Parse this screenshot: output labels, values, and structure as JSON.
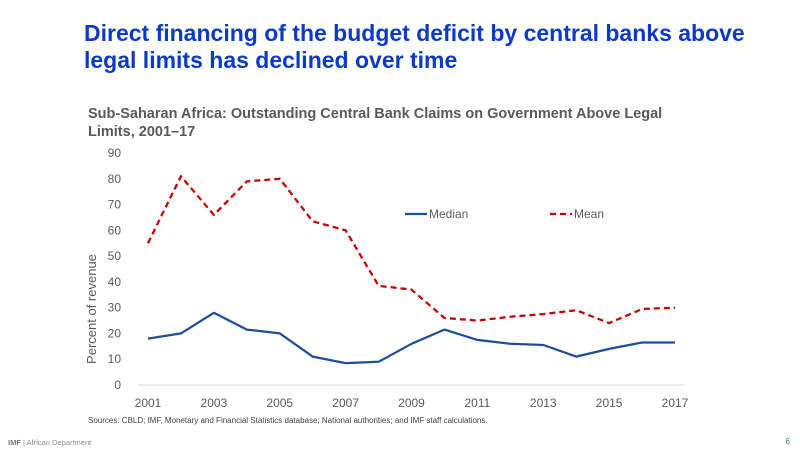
{
  "slide": {
    "title": "Direct financing of the budget deficit by central banks above legal limits has declined over time",
    "source": "Sources: CBLD; IMF, Monetary and Financial Statistics database; National authorities; and IMF staff calculations.",
    "footer_org": "IMF",
    "footer_dept": " | African Department",
    "page_number": "6"
  },
  "colors": {
    "median": "#1f4e96",
    "mean": "#c00000",
    "title": "#0b3bc4"
  },
  "chart_data": {
    "type": "line",
    "title": "Sub-Saharan Africa: Outstanding Central Bank Claims on Government Above Legal Limits, 2001–17",
    "xlabel": "",
    "ylabel": "Percent of revenue",
    "x": [
      2001,
      2002,
      2003,
      2004,
      2005,
      2006,
      2007,
      2008,
      2009,
      2010,
      2011,
      2012,
      2013,
      2014,
      2015,
      2016,
      2017
    ],
    "xticks": [
      "2001",
      "2003",
      "2005",
      "2007",
      "2009",
      "2011",
      "2013",
      "2015",
      "2017"
    ],
    "yticks": [
      "0",
      "10",
      "20",
      "30",
      "40",
      "50",
      "60",
      "70",
      "80",
      "90"
    ],
    "ylim": [
      0,
      90
    ],
    "grid": false,
    "legend_position": "top-right",
    "series": [
      {
        "name": "Median",
        "style": "solid",
        "values": [
          18,
          20,
          28,
          21.5,
          20,
          11,
          8.5,
          9,
          16,
          21.5,
          17.5,
          16,
          15.5,
          11,
          14,
          16.5,
          16.5
        ]
      },
      {
        "name": "Mean",
        "style": "dashed",
        "values": [
          55,
          81,
          66,
          79,
          80,
          63.5,
          60,
          38.5,
          37,
          26,
          25,
          26.5,
          27.5,
          29,
          24,
          29.5,
          30
        ]
      }
    ]
  }
}
